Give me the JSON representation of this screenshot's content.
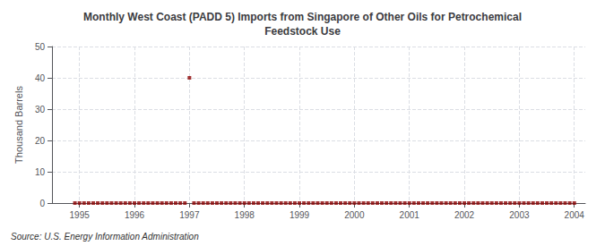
{
  "chart_data": {
    "type": "scatter",
    "title": "Monthly West Coast (PADD 5) Imports from Singapore of Other Oils for Petrochemical\nFeedstock Use",
    "ylabel": "Thousand Barrels",
    "source": "Source: U.S. Energy Information Administration",
    "color": "#8b0000",
    "marker": "square",
    "grid": true,
    "xlim": [
      1994.5,
      2004.2
    ],
    "xticks": [
      1995,
      1996,
      1997,
      1998,
      1999,
      2000,
      2001,
      2002,
      2003,
      2004
    ],
    "ylim": [
      0,
      50
    ],
    "yticks": [
      0,
      10,
      20,
      30,
      40,
      50
    ],
    "x": [
      1994.917,
      1995.0,
      1995.083,
      1995.167,
      1995.25,
      1995.333,
      1995.417,
      1995.5,
      1995.583,
      1995.667,
      1995.75,
      1995.833,
      1995.917,
      1996.0,
      1996.083,
      1996.167,
      1996.25,
      1996.333,
      1996.417,
      1996.5,
      1996.583,
      1996.667,
      1996.75,
      1996.833,
      1996.917,
      1997.0,
      1997.083,
      1997.167,
      1997.25,
      1997.333,
      1997.417,
      1997.5,
      1997.583,
      1997.667,
      1997.75,
      1997.833,
      1997.917,
      1998.0,
      1998.083,
      1998.167,
      1998.25,
      1998.333,
      1998.417,
      1998.5,
      1998.583,
      1998.667,
      1998.75,
      1998.833,
      1998.917,
      1999.0,
      1999.083,
      1999.167,
      1999.25,
      1999.333,
      1999.417,
      1999.5,
      1999.583,
      1999.667,
      1999.75,
      1999.833,
      1999.917,
      2000.0,
      2000.083,
      2000.167,
      2000.25,
      2000.333,
      2000.417,
      2000.5,
      2000.583,
      2000.667,
      2000.75,
      2000.833,
      2000.917,
      2001.0,
      2001.083,
      2001.167,
      2001.25,
      2001.333,
      2001.417,
      2001.5,
      2001.583,
      2001.667,
      2001.75,
      2001.833,
      2001.917,
      2002.0,
      2002.083,
      2002.167,
      2002.25,
      2002.333,
      2002.417,
      2002.5,
      2002.583,
      2002.667,
      2002.75,
      2002.833,
      2002.917,
      2003.0,
      2003.083,
      2003.167,
      2003.25,
      2003.333,
      2003.417,
      2003.5,
      2003.583,
      2003.667,
      2003.75,
      2003.833,
      2003.917,
      2004.0
    ],
    "values": [
      0,
      0,
      0,
      0,
      0,
      0,
      0,
      0,
      0,
      0,
      0,
      0,
      0,
      0,
      0,
      0,
      0,
      0,
      0,
      0,
      0,
      0,
      0,
      0,
      0,
      40,
      0,
      0,
      0,
      0,
      0,
      0,
      0,
      0,
      0,
      0,
      0,
      0,
      0,
      0,
      0,
      0,
      0,
      0,
      0,
      0,
      0,
      0,
      0,
      0,
      0,
      0,
      0,
      0,
      0,
      0,
      0,
      0,
      0,
      0,
      0,
      0,
      0,
      0,
      0,
      0,
      0,
      0,
      0,
      0,
      0,
      0,
      0,
      0,
      0,
      0,
      0,
      0,
      0,
      0,
      0,
      0,
      0,
      0,
      0,
      0,
      0,
      0,
      0,
      0,
      0,
      0,
      0,
      0,
      0,
      0,
      0,
      0,
      0,
      0,
      0,
      0,
      0,
      0,
      0,
      0,
      0,
      0,
      0,
      0
    ]
  }
}
